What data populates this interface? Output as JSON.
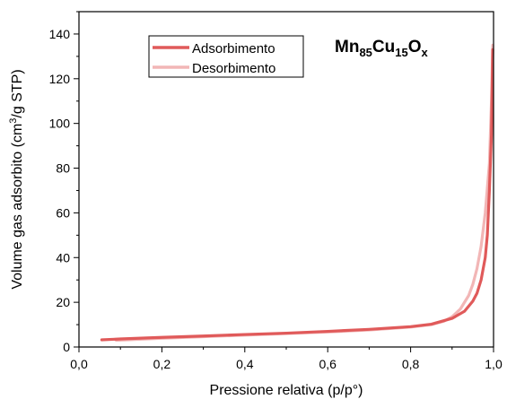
{
  "chart_data": {
    "type": "line",
    "title_main": "Mn",
    "title_sub1": "85",
    "title_mid": "Cu",
    "title_sub2": "15",
    "title_end": "O",
    "title_sub3": "x",
    "xlabel": "Pressione relativa (p/p°)",
    "ylabel_pre": "Volume gas adsorbito (cm",
    "ylabel_sup": "3",
    "ylabel_post": "/g STP)",
    "xlim": [
      0,
      1
    ],
    "ylim": [
      0,
      150
    ],
    "x_ticks": [
      0,
      0.2,
      0.4,
      0.6,
      0.8,
      1.0
    ],
    "x_tick_labels": [
      "0,0",
      "0,2",
      "0,4",
      "0,6",
      "0,8",
      "1,0"
    ],
    "y_ticks": [
      0,
      20,
      40,
      60,
      80,
      100,
      120,
      140
    ],
    "y_tick_labels": [
      "0",
      "20",
      "40",
      "60",
      "80",
      "100",
      "120",
      "140"
    ],
    "grid": false,
    "legend_position": "top-left",
    "series": [
      {
        "name": "Adsorbimento",
        "color": "#e05a5a",
        "x": [
          0.055,
          0.1,
          0.2,
          0.3,
          0.4,
          0.5,
          0.6,
          0.7,
          0.8,
          0.85,
          0.9,
          0.93,
          0.95,
          0.96,
          0.97,
          0.98,
          0.985,
          0.99,
          0.995,
          0.998
        ],
        "y": [
          3.2,
          3.6,
          4.3,
          4.9,
          5.6,
          6.2,
          7.0,
          7.9,
          9.1,
          10.2,
          12.8,
          16.0,
          20.5,
          24.0,
          30.0,
          40.0,
          50.0,
          70.0,
          95.0,
          133.0
        ]
      },
      {
        "name": "Desorbimento",
        "color": "#f2b6b6",
        "x": [
          0.09,
          0.2,
          0.3,
          0.4,
          0.5,
          0.6,
          0.7,
          0.8,
          0.85,
          0.88,
          0.9,
          0.92,
          0.94,
          0.95,
          0.96,
          0.97,
          0.98,
          0.99,
          0.995,
          0.998
        ],
        "y": [
          3.0,
          3.9,
          4.6,
          5.3,
          6.0,
          6.7,
          7.6,
          8.9,
          10.0,
          11.5,
          13.5,
          17.0,
          23.0,
          28.0,
          35.0,
          45.0,
          60.0,
          82.0,
          110.0,
          135.0
        ]
      }
    ]
  }
}
